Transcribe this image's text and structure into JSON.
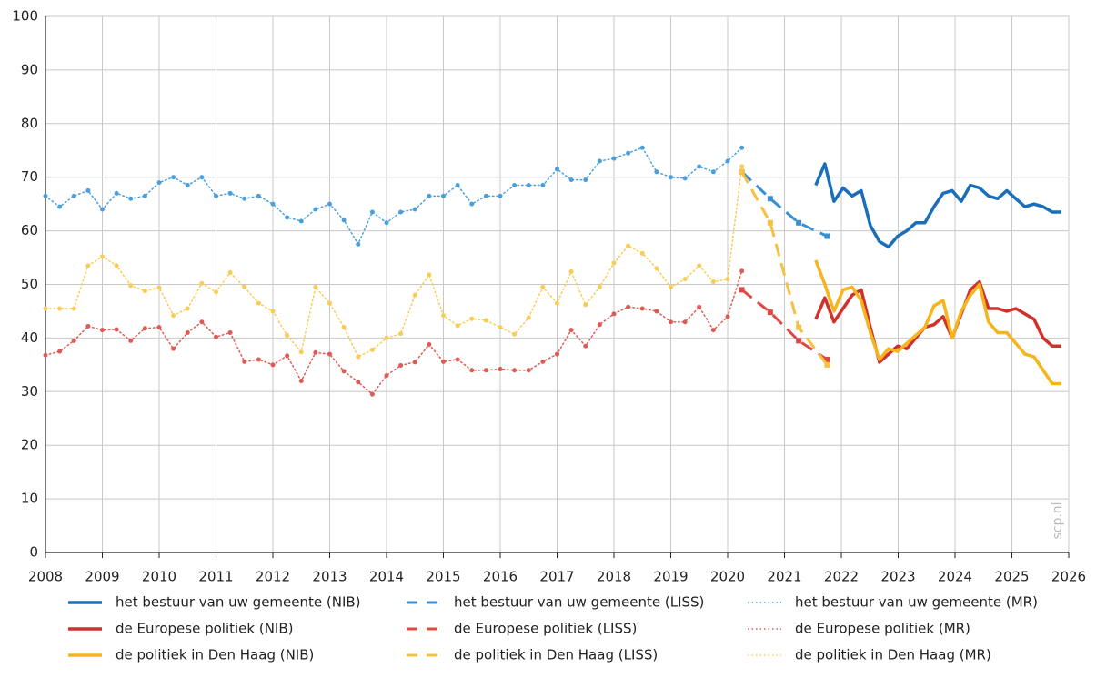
{
  "chart_data": {
    "type": "line",
    "watermark": "scp.nl",
    "xlim": [
      2008,
      2026
    ],
    "xticks": [
      2008,
      2009,
      2010,
      2011,
      2012,
      2013,
      2014,
      2015,
      2016,
      2017,
      2018,
      2019,
      2020,
      2021,
      2022,
      2023,
      2024,
      2025,
      2026
    ],
    "ylim": [
      0,
      100
    ],
    "yticks": [
      0,
      10,
      20,
      30,
      40,
      50,
      60,
      70,
      80,
      90,
      100
    ],
    "grid": true,
    "series": [
      {
        "name": "het bestuur van uw gemeente (NIB)",
        "color": "#1a6fba",
        "style": "solid",
        "x": "nib",
        "values": [
          68.5,
          72.5,
          65.5,
          68,
          66.5,
          67.5,
          61,
          58,
          57,
          59,
          60,
          61.5,
          61.5,
          64.5,
          67,
          67.5,
          65.5,
          68.5,
          68,
          66.5,
          66,
          67.5,
          66,
          64.5,
          65,
          64.5,
          63.5,
          63.5
        ]
      },
      {
        "name": "het bestuur van uw gemeente (LISS)",
        "color": "#3a8fd0",
        "style": "dashed",
        "x": "liss",
        "values": [
          71,
          66,
          61.5,
          59
        ]
      },
      {
        "name": "het bestuur van uw gemeente (MR)",
        "color": "#4aa0dc",
        "style": "dotted",
        "x": "mr",
        "values": [
          66.5,
          64.5,
          66.5,
          67.5,
          64,
          67,
          66,
          66.5,
          69,
          70,
          68.5,
          70,
          66.5,
          67,
          66,
          66.5,
          65,
          62.5,
          61.8,
          64,
          65,
          62,
          57.5,
          63.5,
          61.5,
          63.5,
          64,
          66.5,
          66.5,
          68.5,
          65,
          66.5,
          66.5,
          68.5,
          68.5,
          68.5,
          71.5,
          69.5,
          69.5,
          73,
          73.5,
          74.5,
          75.5,
          71,
          70,
          69.8,
          72,
          71,
          73,
          75.5
        ]
      },
      {
        "name": "de Europese politiek (NIB)",
        "color": "#d0312d",
        "style": "solid",
        "x": "nib",
        "values": [
          43.5,
          47.5,
          43,
          45.5,
          48,
          49,
          42,
          35.5,
          37,
          38.5,
          38,
          40,
          42,
          42.5,
          44,
          40,
          44.5,
          49,
          50.5,
          45.5,
          45.5,
          45,
          45.5,
          44.5,
          43.5,
          40,
          38.5,
          38.5
        ]
      },
      {
        "name": "de Europese politiek (LISS)",
        "color": "#dc4a45",
        "style": "dashed",
        "x": "liss",
        "values": [
          49,
          44.8,
          39.5,
          36
        ]
      },
      {
        "name": "de Europese politiek (MR)",
        "color": "#de5a55",
        "style": "dotted",
        "x": "mr",
        "values": [
          36.8,
          37.5,
          39.5,
          42.2,
          41.5,
          41.6,
          39.5,
          41.8,
          42,
          38,
          41,
          43,
          40.2,
          41,
          35.6,
          36,
          35,
          36.7,
          32,
          37.3,
          37,
          33.8,
          31.8,
          29.5,
          33,
          34.9,
          35.5,
          38.8,
          35.6,
          36,
          34,
          34,
          34.2,
          34,
          34,
          35.6,
          37,
          41.5,
          38.5,
          42.5,
          44.5,
          45.8,
          45.5,
          45,
          43,
          43,
          45.8,
          41.5,
          44,
          52.5
        ]
      },
      {
        "name": "de politiek in Den Haag (NIB)",
        "color": "#f5b51c",
        "style": "solid",
        "x": "nib",
        "values": [
          54.5,
          50,
          45,
          49,
          49.5,
          47,
          41,
          36,
          38,
          37.5,
          39,
          40.5,
          42,
          46,
          47,
          40,
          45,
          48,
          50,
          43,
          41,
          41,
          39,
          37,
          36.5,
          34,
          31.5,
          31.5
        ]
      },
      {
        "name": "de politiek in Den Haag (LISS)",
        "color": "#f7c040",
        "style": "dashed",
        "x": "liss",
        "values": [
          71,
          61.5,
          42,
          35
        ]
      },
      {
        "name": "de politiek in Den Haag (MR)",
        "color": "#f8cc55",
        "style": "dotted",
        "x": "mr",
        "values": [
          45.5,
          45.5,
          45.5,
          53.5,
          55.2,
          53.5,
          49.8,
          48.8,
          49.4,
          44.2,
          45.5,
          50.2,
          48.6,
          52.2,
          49.5,
          46.5,
          45,
          40.5,
          37.4,
          49.5,
          46.5,
          42,
          36.5,
          37.8,
          40,
          40.8,
          48,
          51.8,
          44.2,
          42.3,
          43.6,
          43.3,
          42,
          40.7,
          43.8,
          49.5,
          46.5,
          52.4,
          46.2,
          49.5,
          54,
          57.2,
          55.8,
          53,
          49.5,
          51,
          53.5,
          50.5,
          51,
          72
        ]
      }
    ],
    "x_sets": {
      "nib": [
        2021.55,
        2021.71,
        2021.87,
        2022.03,
        2022.19,
        2022.35,
        2022.51,
        2022.67,
        2022.83,
        2022.99,
        2023.15,
        2023.31,
        2023.47,
        2023.63,
        2023.79,
        2023.95,
        2024.11,
        2024.27,
        2024.43,
        2024.59,
        2024.75,
        2024.91,
        2025.07,
        2025.23,
        2025.39,
        2025.55,
        2025.71,
        2025.87
      ],
      "liss": [
        2020.25,
        2020.75,
        2021.25,
        2021.75
      ],
      "mr": [
        2008,
        2008.25,
        2008.5,
        2008.75,
        2009,
        2009.25,
        2009.5,
        2009.75,
        2010,
        2010.25,
        2010.5,
        2010.75,
        2011,
        2011.25,
        2011.5,
        2011.75,
        2012,
        2012.25,
        2012.5,
        2012.75,
        2013,
        2013.25,
        2013.5,
        2013.75,
        2014,
        2014.25,
        2014.5,
        2014.75,
        2015,
        2015.25,
        2015.5,
        2015.75,
        2016,
        2016.25,
        2016.5,
        2016.75,
        2017,
        2017.25,
        2017.5,
        2017.75,
        2018,
        2018.25,
        2018.5,
        2018.75,
        2019,
        2019.25,
        2019.5,
        2019.75,
        2020,
        2020.25
      ]
    }
  }
}
